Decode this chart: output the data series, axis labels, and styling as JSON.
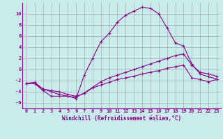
{
  "background_color": "#c8ecec",
  "grid_color": "#aaaaaa",
  "line_color": "#880088",
  "xlim": [
    -0.5,
    23.5
  ],
  "ylim": [
    -7,
    12
  ],
  "yticks": [
    -6,
    -4,
    -2,
    0,
    2,
    4,
    6,
    8,
    10
  ],
  "xticks": [
    0,
    1,
    2,
    3,
    4,
    5,
    6,
    7,
    8,
    9,
    10,
    11,
    12,
    13,
    14,
    15,
    16,
    17,
    18,
    19,
    20,
    21,
    22,
    23
  ],
  "xlabel": "Windchill (Refroidissement éolien,°C)",
  "series1_x": [
    0,
    1,
    2,
    3,
    4,
    5,
    6,
    7,
    8,
    9,
    10,
    11,
    12,
    13,
    14,
    15,
    16,
    17,
    18,
    19,
    20,
    21,
    22,
    23
  ],
  "series1_y": [
    -2.5,
    -2.5,
    -3.8,
    -4.8,
    -4.8,
    -4.8,
    -5.2,
    -1.0,
    2.0,
    5.0,
    6.5,
    8.5,
    9.8,
    10.5,
    11.2,
    11.0,
    10.0,
    7.5,
    4.8,
    4.2,
    1.0,
    -0.8,
    -1.3,
    -1.7
  ],
  "series2_x": [
    0,
    1,
    2,
    3,
    4,
    5,
    6,
    7,
    8,
    9,
    10,
    11,
    12,
    13,
    14,
    15,
    16,
    17,
    18,
    19,
    20,
    21,
    22,
    23
  ],
  "series2_y": [
    -2.5,
    -2.3,
    -3.5,
    -4.0,
    -4.5,
    -4.8,
    -5.0,
    -4.2,
    -3.2,
    -2.2,
    -1.5,
    -1.0,
    -0.5,
    0.0,
    0.5,
    1.0,
    1.5,
    2.0,
    2.5,
    2.8,
    0.8,
    -0.5,
    -0.8,
    -1.2
  ],
  "series3_x": [
    0,
    1,
    2,
    3,
    4,
    5,
    6,
    7,
    8,
    9,
    10,
    11,
    12,
    13,
    14,
    15,
    16,
    17,
    18,
    19,
    20,
    21,
    22,
    23
  ],
  "series3_y": [
    -2.5,
    -2.5,
    -3.5,
    -3.8,
    -4.0,
    -4.5,
    -4.8,
    -4.3,
    -3.3,
    -2.8,
    -2.3,
    -1.8,
    -1.5,
    -1.2,
    -0.8,
    -0.5,
    -0.2,
    0.2,
    0.5,
    0.8,
    -1.5,
    -1.8,
    -2.2,
    -1.8
  ],
  "font_size_label": 5.5,
  "font_size_tick": 5,
  "marker": "+"
}
